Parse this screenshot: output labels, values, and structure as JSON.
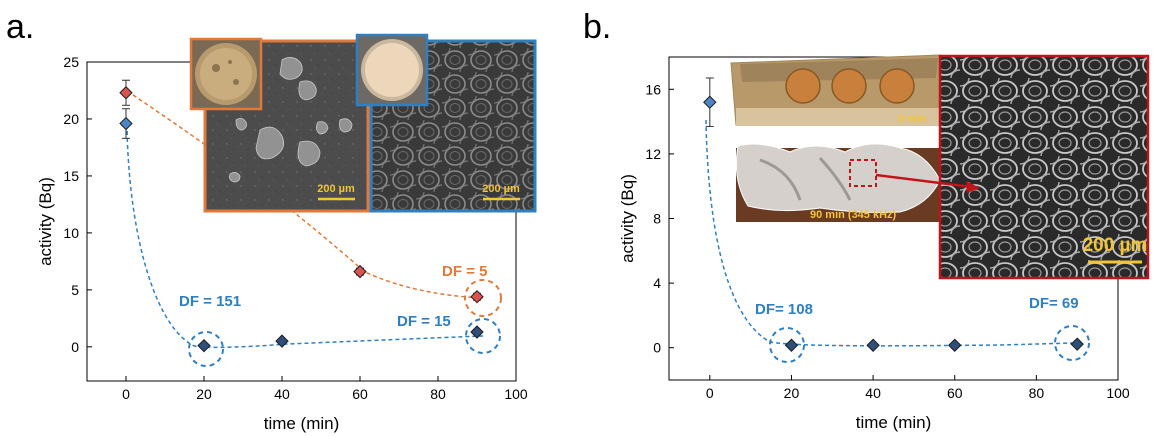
{
  "colors": {
    "orange": "#e0793a",
    "blue": "#2f7fc1",
    "red_marker": "#d9534f",
    "blue_marker": "#4d85c8",
    "dark_marker": "#2e4f7a",
    "frame_red": "#c0141b"
  },
  "chart_data": [
    {
      "panel": "a.",
      "type": "scatter",
      "xlabel": "time (min)",
      "ylabel": "activity (Bq)",
      "xlim": [
        -10,
        100
      ],
      "ylim": [
        -3,
        25
      ],
      "xticks": [
        0,
        20,
        40,
        60,
        80,
        100
      ],
      "yticks": [
        0,
        5,
        10,
        15,
        20,
        25
      ],
      "series": [
        {
          "x": [
            0,
            60,
            90
          ],
          "y": [
            22.3,
            6.6,
            4.4
          ],
          "yerr": [
            1.1,
            0.3,
            0.3
          ],
          "style": "dashed-orange"
        },
        {
          "x": [
            0,
            20,
            40,
            90
          ],
          "y": [
            19.6,
            0.1,
            0.5,
            1.3
          ],
          "yerr": [
            1.3,
            0.1,
            0.1,
            0.2
          ],
          "style": "dashed-blue"
        }
      ],
      "annotations": [
        {
          "text": "DF = 5",
          "x": 90,
          "y": 4.4,
          "color": "orange"
        },
        {
          "text": "DF = 151",
          "x": 20,
          "y": 0.1,
          "color": "blue"
        },
        {
          "text": "DF = 15",
          "x": 90,
          "y": 1.3,
          "color": "blue"
        }
      ],
      "scale_bars": [
        "200 µm",
        "200 µm"
      ]
    },
    {
      "panel": "b.",
      "type": "scatter",
      "xlabel": "time (min)",
      "ylabel": "activity (Bq)",
      "xlim": [
        -10,
        100
      ],
      "ylim": [
        -2,
        18
      ],
      "xticks": [
        0,
        20,
        40,
        60,
        80,
        100
      ],
      "yticks": [
        0,
        4,
        8,
        12,
        16
      ],
      "series": [
        {
          "x": [
            0,
            20,
            40,
            60,
            90
          ],
          "y": [
            15.2,
            0.15,
            0.15,
            0.15,
            0.22
          ],
          "yerr": [
            1.5,
            0.1,
            0.1,
            0.1,
            0.1
          ],
          "style": "dashed-blue"
        }
      ],
      "annotations": [
        {
          "text": "DF= 108",
          "x": 20,
          "y": 0.15,
          "color": "blue"
        },
        {
          "text": "DF= 69",
          "x": 90,
          "y": 0.22,
          "color": "blue"
        }
      ],
      "photo_labels": [
        "0 min",
        "90 min (345 kHz)"
      ],
      "scale_bars": [
        "200 µm"
      ]
    }
  ]
}
